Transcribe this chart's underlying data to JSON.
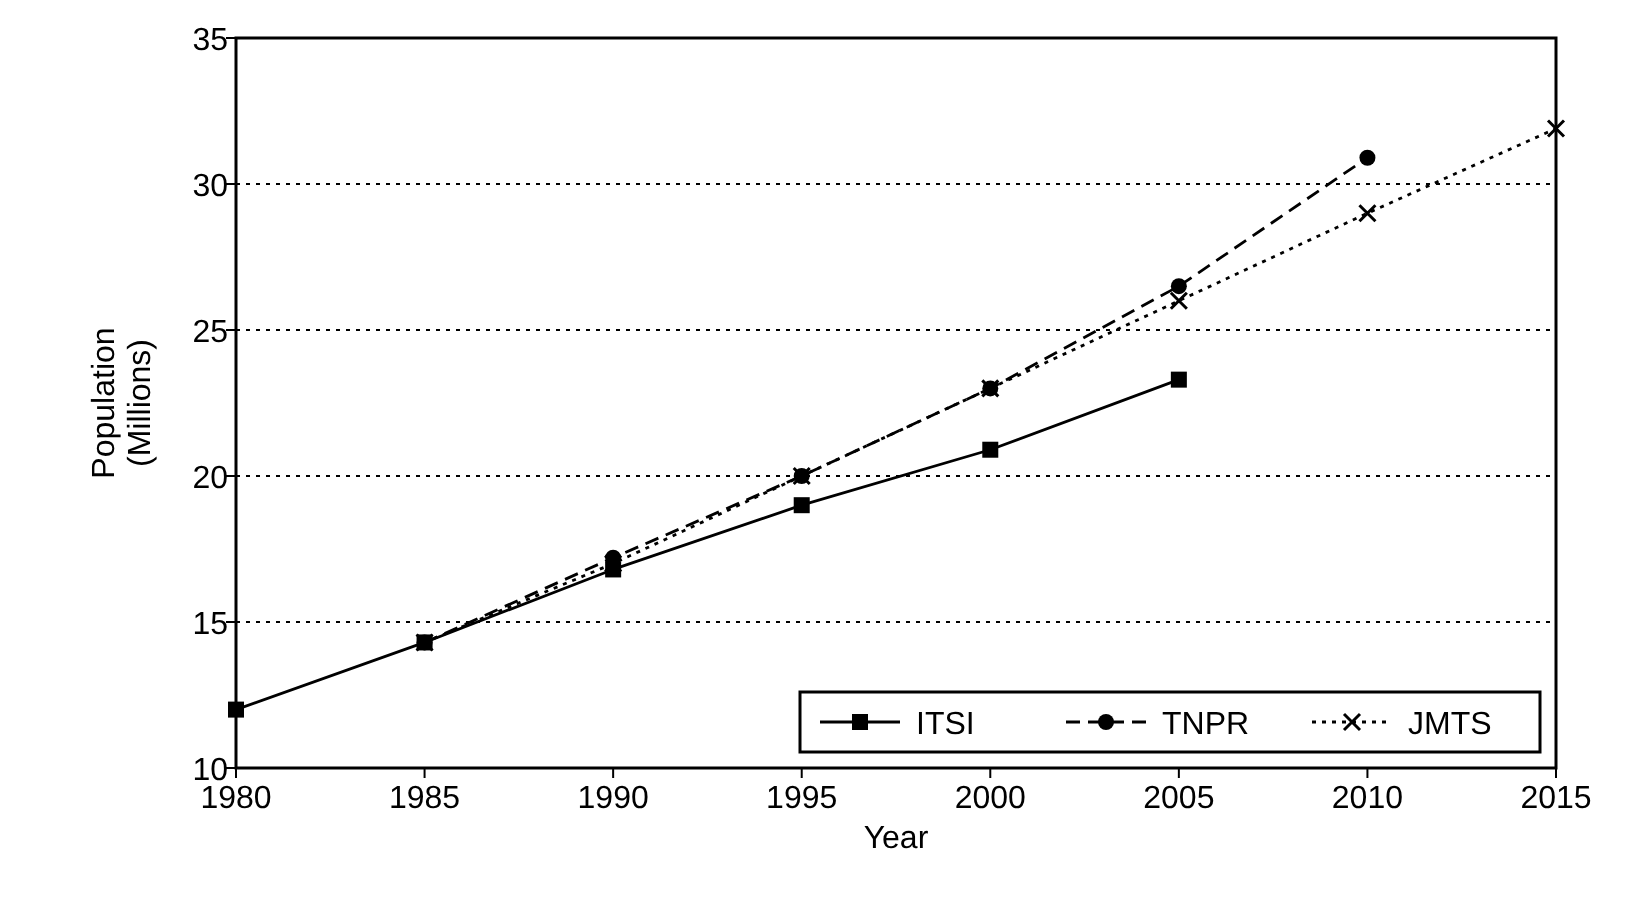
{
  "chart_data": {
    "type": "line",
    "xlabel": "Year",
    "ylabel": "Population\n(Millions)",
    "x": [
      1980,
      1985,
      1990,
      1995,
      2000,
      2005,
      2010,
      2015
    ],
    "xlim": [
      1980,
      2015
    ],
    "xticks": [
      1980,
      1985,
      1990,
      1995,
      2000,
      2005,
      2010,
      2015
    ],
    "ylim": [
      10,
      35
    ],
    "yticks": [
      10,
      15,
      20,
      25,
      30,
      35
    ],
    "grid": "y",
    "legend": "bottom right",
    "series": [
      {
        "name": "ITSI",
        "color": "#000000",
        "line_style": "solid",
        "marker": "square",
        "values": [
          12,
          14.3,
          16.8,
          19,
          20.9,
          23.3,
          null,
          null
        ]
      },
      {
        "name": "TNPR",
        "color": "#000000",
        "line_style": "dashed",
        "marker": "circle",
        "values": [
          null,
          14.3,
          17.2,
          20,
          23,
          26.5,
          30.9,
          null
        ]
      },
      {
        "name": "JMTS",
        "color": "#000000",
        "line_style": "dotted",
        "marker": "cross",
        "values": [
          null,
          14.3,
          17,
          20,
          23,
          26,
          29,
          31.9
        ]
      }
    ]
  }
}
